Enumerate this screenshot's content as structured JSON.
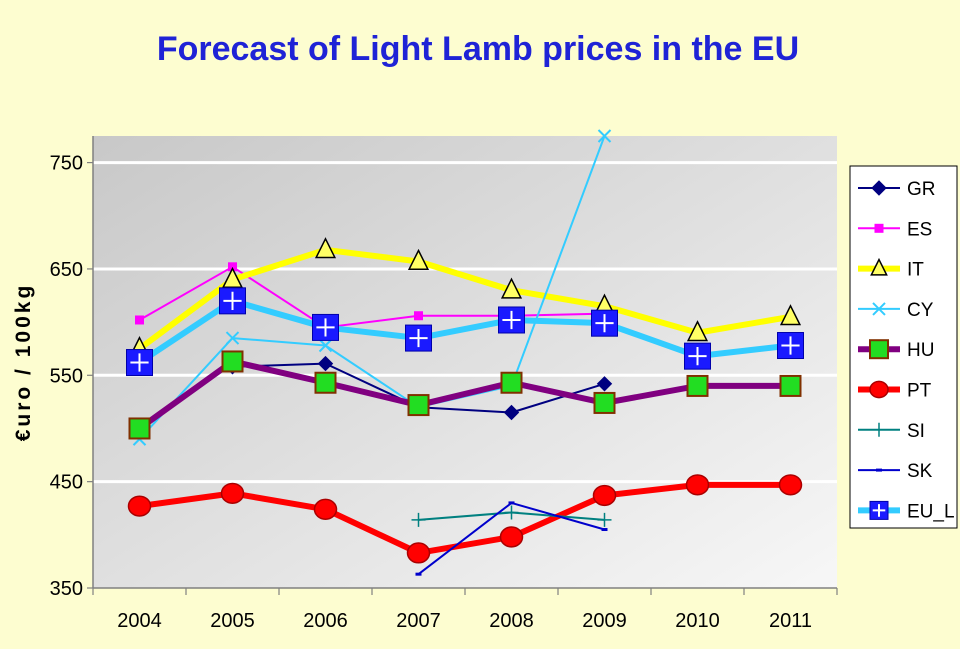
{
  "chart_data": {
    "type": "line",
    "title": "Forecast of Light Lamb prices in the EU",
    "xlabel": "",
    "ylabel": "€uro / 100kg",
    "categories": [
      "2004",
      "2005",
      "2006",
      "2007",
      "2008",
      "2009",
      "2010",
      "2011"
    ],
    "y_ticks": [
      "350",
      "450",
      "550",
      "650",
      "750"
    ],
    "ylim": [
      350,
      775
    ],
    "grid": true,
    "legend_position": "right",
    "series": [
      {
        "name": "GR",
        "color": "#000080",
        "values": [
          null,
          558,
          561,
          520,
          515,
          542,
          null,
          null
        ],
        "marker": "diamond"
      },
      {
        "name": "ES",
        "color": "#ff00ff",
        "values": [
          602,
          652,
          595,
          606,
          606,
          608,
          null,
          null
        ],
        "marker": "square"
      },
      {
        "name": "IT",
        "color": "#ffff00",
        "values": [
          575,
          640,
          668,
          657,
          630,
          615,
          590,
          605
        ],
        "marker": "triangle"
      },
      {
        "name": "CY",
        "color": "#33ccff",
        "values": [
          490,
          585,
          578,
          520,
          540,
          775,
          null,
          null
        ],
        "marker": "x"
      },
      {
        "name": "HU",
        "color": "#800080",
        "values": [
          500,
          563,
          543,
          522,
          543,
          524,
          540,
          540
        ],
        "marker": "square-green"
      },
      {
        "name": "PT",
        "color": "#ff0000",
        "values": [
          427,
          439,
          424,
          383,
          398,
          437,
          447,
          447
        ],
        "marker": "circle"
      },
      {
        "name": "SI",
        "color": "#008080",
        "values": [
          null,
          null,
          null,
          414,
          421,
          414,
          null,
          null
        ],
        "marker": "plus"
      },
      {
        "name": "SK",
        "color": "#0000cc",
        "values": [
          null,
          null,
          null,
          363,
          430,
          405,
          null,
          null
        ],
        "marker": "dash"
      },
      {
        "name": "EU_L",
        "color": "#33ccff",
        "values": [
          562,
          620,
          595,
          585,
          602,
          599,
          568,
          578
        ],
        "marker": "square-plus"
      }
    ]
  }
}
